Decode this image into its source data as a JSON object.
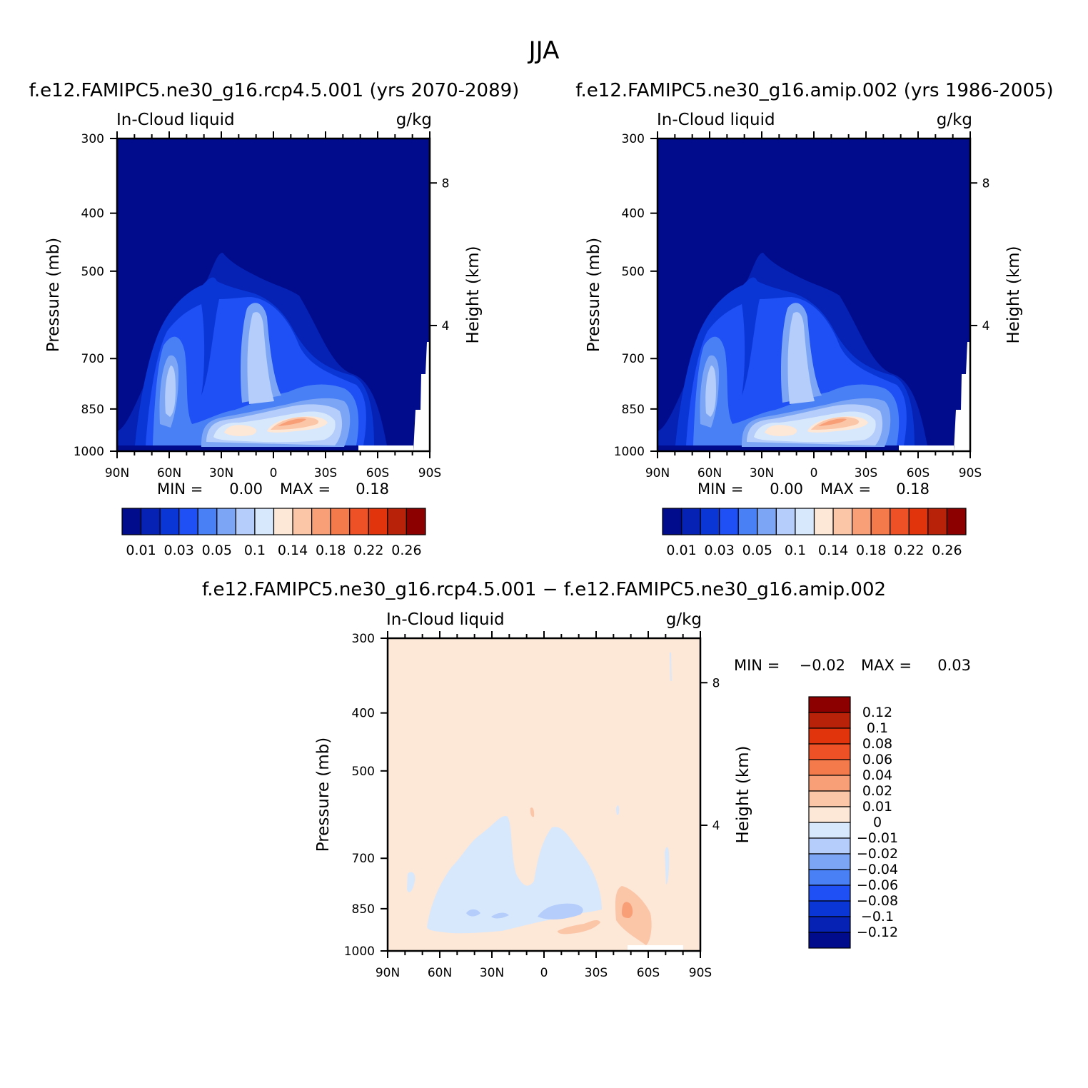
{
  "figure": {
    "title": "JJA",
    "diff_title": "f.e12.FAMIPC5.ne30_g16.rcp4.5.001 − f.e12.FAMIPC5.ne30_g16.amip.002",
    "colors": {
      "seq": [
        "#000c8c",
        "#0522b4",
        "#0a36d6",
        "#1e50f5",
        "#4a80f5",
        "#7ca6f5",
        "#b4cdfa",
        "#d7e8fd",
        "#fde7d7",
        "#fbc5a8",
        "#f89f78",
        "#f47a4b",
        "#ef5127",
        "#e1340c",
        "#b82208",
        "#8c0000"
      ],
      "div": [
        "#000c8c",
        "#0522b4",
        "#0a36d6",
        "#1e50f5",
        "#4a80f5",
        "#7ca6f5",
        "#b4cdfa",
        "#d7e8fd",
        "#fde7d7",
        "#fbc5a8",
        "#f89f78",
        "#f47a4b",
        "#ef5127",
        "#e1340c",
        "#b82208",
        "#8c0000"
      ]
    }
  },
  "chart_data": [
    {
      "type": "heatmap",
      "title": "f.e12.FAMIPC5.ne30_g16.rcp4.5.001 (yrs 2070-2089)",
      "left_label": "In-Cloud liquid",
      "right_label": "g/kg",
      "xlabel": "",
      "ylabel": "Pressure (mb)",
      "y2label": "Height (km)",
      "xticks": [
        "90N",
        "60N",
        "30N",
        "0",
        "30S",
        "60S",
        "90S"
      ],
      "yticks": [
        "300",
        "400",
        "500",
        "700",
        "850",
        "1000"
      ],
      "y2ticks": [
        "8",
        "4"
      ],
      "min_label": "MIN =",
      "min_value": "0.00",
      "max_label": "MAX =",
      "max_value": "0.18",
      "colorbar_labels": [
        "0.01",
        "0.03",
        "0.05",
        "0.1",
        "0.14",
        "0.18",
        "0.22",
        "0.26"
      ],
      "contour_levels": [
        0.01,
        0.02,
        0.03,
        0.04,
        0.05,
        0.07,
        0.1,
        0.12,
        0.14,
        0.16,
        0.18,
        0.2,
        0.22,
        0.24,
        0.26
      ]
    },
    {
      "type": "heatmap",
      "title": "f.e12.FAMIPC5.ne30_g16.amip.002 (yrs 1986-2005)",
      "left_label": "In-Cloud liquid",
      "right_label": "g/kg",
      "xlabel": "",
      "ylabel": "Pressure (mb)",
      "y2label": "Height (km)",
      "xticks": [
        "90N",
        "60N",
        "30N",
        "0",
        "30S",
        "60S",
        "90S"
      ],
      "yticks": [
        "300",
        "400",
        "500",
        "700",
        "850",
        "1000"
      ],
      "y2ticks": [
        "8",
        "4"
      ],
      "min_label": "MIN =",
      "min_value": "0.00",
      "max_label": "MAX =",
      "max_value": "0.18",
      "colorbar_labels": [
        "0.01",
        "0.03",
        "0.05",
        "0.1",
        "0.14",
        "0.18",
        "0.22",
        "0.26"
      ],
      "contour_levels": [
        0.01,
        0.02,
        0.03,
        0.04,
        0.05,
        0.07,
        0.1,
        0.12,
        0.14,
        0.16,
        0.18,
        0.2,
        0.22,
        0.24,
        0.26
      ]
    },
    {
      "type": "heatmap",
      "title": "",
      "left_label": "In-Cloud liquid",
      "right_label": "g/kg",
      "xlabel": "",
      "ylabel": "Pressure (mb)",
      "y2label": "Height (km)",
      "xticks": [
        "90N",
        "60N",
        "30N",
        "0",
        "30S",
        "60S",
        "90S"
      ],
      "yticks": [
        "300",
        "400",
        "500",
        "700",
        "850",
        "1000"
      ],
      "y2ticks": [
        "8",
        "4"
      ],
      "min_label": "MIN =",
      "min_value": "−0.02",
      "max_label": "MAX =",
      "max_value": "0.03",
      "colorbar_labels": [
        "0.12",
        "0.1",
        "0.08",
        "0.06",
        "0.04",
        "0.02",
        "0.01",
        "0",
        "−0.01",
        "−0.02",
        "−0.04",
        "−0.06",
        "−0.08",
        "−0.1",
        "−0.12"
      ],
      "contour_levels": [
        -0.12,
        -0.1,
        -0.08,
        -0.06,
        -0.04,
        -0.02,
        -0.01,
        0,
        0.01,
        0.02,
        0.04,
        0.06,
        0.08,
        0.1,
        0.12
      ]
    }
  ]
}
